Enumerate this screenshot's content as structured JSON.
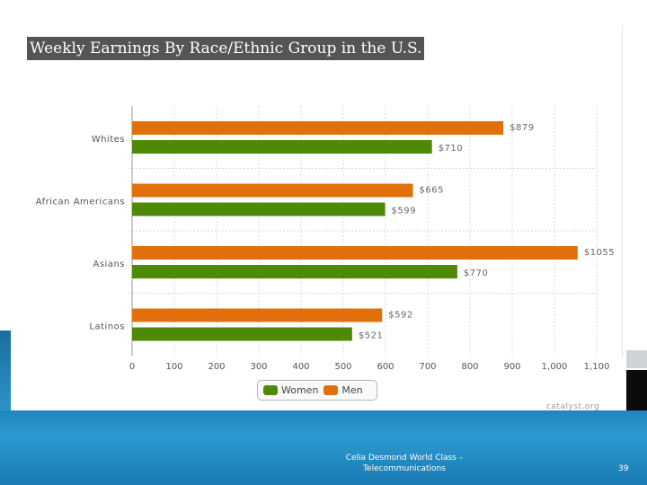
{
  "slide": {
    "title": "Weekly Earnings By Race/Ethnic Group in the U.S.",
    "footer_line1": "Celia Desmond  World Class –",
    "footer_line2": "Telecommunications",
    "page_number": "39",
    "source": "catalyst.org"
  },
  "colors": {
    "men": "#e0700b",
    "women": "#4e8a08",
    "grid": "#d8d8d8"
  },
  "chart_data": {
    "type": "bar",
    "orientation": "horizontal",
    "title": "Weekly Earnings By Race/Ethnic Group in the U.S.",
    "categories": [
      "Whites",
      "African Americans",
      "Asians",
      "Latinos"
    ],
    "series": [
      {
        "name": "Men",
        "values": [
          879,
          665,
          1055,
          592
        ],
        "labels": [
          "$879",
          "$665",
          "$1055",
          "$592"
        ]
      },
      {
        "name": "Women",
        "values": [
          710,
          599,
          770,
          521
        ],
        "labels": [
          "$710",
          "$599",
          "$770",
          "$521"
        ]
      }
    ],
    "xlim": [
      0,
      1100
    ],
    "xticks": [
      "0",
      "100",
      "200",
      "300",
      "400",
      "500",
      "600",
      "700",
      "800",
      "900",
      "1,000",
      "1,100"
    ],
    "legend": {
      "position": "bottom-center",
      "entries": [
        "Women",
        "Men"
      ]
    },
    "grid": true
  }
}
